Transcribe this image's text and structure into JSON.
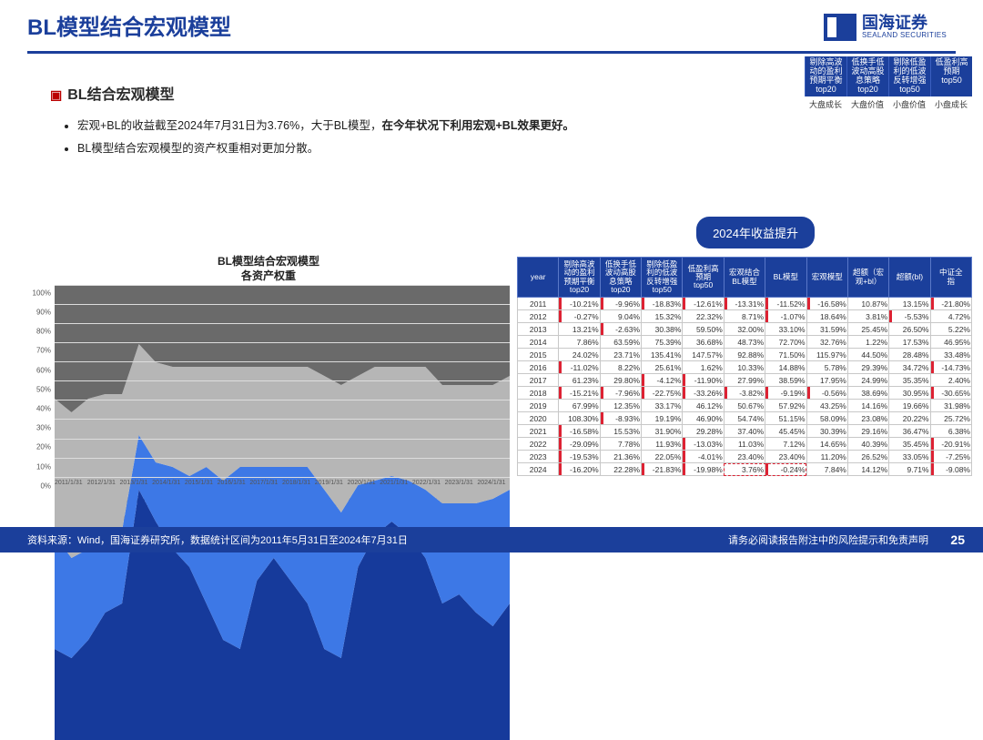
{
  "title": "BL模型结合宏观模型",
  "logo": {
    "cn": "国海证券",
    "en": "SEALAND SECURITIES"
  },
  "corner_legend": {
    "headers": [
      "剔除高波\n动的盈利\n预期平衡\ntop20",
      "低换手低\n波动高股\n息策略\ntop20",
      "剔除低盈\n利的低波\n反转增强\ntop50",
      "低盈利高\n预期\ntop50"
    ],
    "sub": [
      "大盘成长",
      "大盘价值",
      "小盘价值",
      "小盘成长"
    ]
  },
  "subtitle": "BL结合宏观模型",
  "bullets": [
    {
      "t1": "宏观+BL的收益截至2024年7月31日为3.76%，大于BL模型，",
      "bold": "在今年状况下利用宏观+BL效果更好。"
    },
    {
      "t1": "BL模型结合宏观模型的资产权重相对更加分散。",
      "bold": ""
    }
  ],
  "badge": "2024年收益提升",
  "chart": {
    "title1": "BL模型结合宏观模型",
    "title2": "各资产权重",
    "ylim": [
      0,
      100
    ],
    "ytick_step": 10,
    "x_labels": [
      "2011/1/31",
      "2012/1/31",
      "2013/1/31",
      "2014/1/31",
      "2015/1/31",
      "2016/1/31",
      "2017/1/31",
      "2018/1/31",
      "2019/1/31",
      "2020/1/31",
      "2021/1/31",
      "2022/1/31",
      "2023/1/31",
      "2024/1/31"
    ],
    "series": [
      {
        "name": "剔除高波动的盈利预期平衡top20",
        "color": "#163a9b",
        "values": [
          20,
          18,
          22,
          28,
          30,
          55,
          48,
          42,
          38,
          30,
          22,
          20,
          35,
          40,
          35,
          30,
          20,
          18,
          38,
          45,
          48,
          45,
          40,
          30,
          32,
          28,
          25,
          30
        ]
      },
      {
        "name": "低换手低波动高股息策略top20",
        "color": "#3d78e6",
        "values": [
          25,
          22,
          20,
          18,
          16,
          12,
          13,
          18,
          20,
          30,
          35,
          40,
          25,
          20,
          25,
          30,
          35,
          32,
          18,
          12,
          10,
          12,
          15,
          22,
          20,
          24,
          28,
          25
        ]
      },
      {
        "name": "剔除低盈利的低波反转增强top50",
        "color": "#b6b6b6",
        "values": [
          30,
          32,
          33,
          30,
          30,
          20,
          22,
          22,
          24,
          22,
          25,
          22,
          22,
          22,
          22,
          22,
          25,
          28,
          24,
          25,
          24,
          25,
          27,
          26,
          26,
          26,
          25,
          25
        ]
      },
      {
        "name": "低盈利高预期top50",
        "color": "#6a6a6a",
        "values": [
          25,
          28,
          25,
          24,
          24,
          13,
          17,
          18,
          18,
          18,
          18,
          18,
          18,
          18,
          18,
          18,
          20,
          22,
          20,
          18,
          18,
          18,
          18,
          22,
          22,
          22,
          22,
          20
        ]
      }
    ],
    "grid_color": "#dddddd"
  },
  "table": {
    "columns": [
      "year",
      "剔除高波\n动的盈利\n预期平衡\ntop20",
      "低换手低\n波动高股\n息策略\ntop20",
      "剔除低盈\n利的低波\n反转增强\ntop50",
      "低盈利高\n预期\ntop50",
      "宏观结合\nBL模型",
      "BL模型",
      "宏观模型",
      "超额（宏\n观+bl）",
      "超额(bl)",
      "中证全\n指"
    ],
    "rows": [
      [
        "2011",
        "-10.21%",
        "-9.96%",
        "-18.83%",
        "-12.61%",
        "-13.31%",
        "-11.52%",
        "-16.58%",
        "10.87%",
        "13.15%",
        "-21.80%"
      ],
      [
        "2012",
        "-0.27%",
        "9.04%",
        "15.32%",
        "22.32%",
        "8.71%",
        "-1.07%",
        "18.64%",
        "3.81%",
        "-5.53%",
        "4.72%"
      ],
      [
        "2013",
        "13.21%",
        "-2.63%",
        "30.38%",
        "59.50%",
        "32.00%",
        "33.10%",
        "31.59%",
        "25.45%",
        "26.50%",
        "5.22%"
      ],
      [
        "2014",
        "7.86%",
        "63.59%",
        "75.39%",
        "36.68%",
        "48.73%",
        "72.70%",
        "32.76%",
        "1.22%",
        "17.53%",
        "46.95%"
      ],
      [
        "2015",
        "24.02%",
        "23.71%",
        "135.41%",
        "147.57%",
        "92.88%",
        "71.50%",
        "115.97%",
        "44.50%",
        "28.48%",
        "33.48%"
      ],
      [
        "2016",
        "-11.02%",
        "8.22%",
        "25.61%",
        "1.62%",
        "10.33%",
        "14.88%",
        "5.78%",
        "29.39%",
        "34.72%",
        "-14.73%"
      ],
      [
        "2017",
        "61.23%",
        "29.80%",
        "-4.12%",
        "-11.90%",
        "27.99%",
        "38.59%",
        "17.95%",
        "24.99%",
        "35.35%",
        "2.40%"
      ],
      [
        "2018",
        "-15.21%",
        "-7.96%",
        "-22.75%",
        "-33.26%",
        "-3.82%",
        "-9.19%",
        "-0.56%",
        "38.69%",
        "30.95%",
        "-30.65%"
      ],
      [
        "2019",
        "67.99%",
        "12.35%",
        "33.17%",
        "46.12%",
        "50.67%",
        "57.92%",
        "43.25%",
        "14.16%",
        "19.66%",
        "31.98%"
      ],
      [
        "2020",
        "108.30%",
        "-8.93%",
        "19.19%",
        "46.90%",
        "54.74%",
        "51.15%",
        "58.09%",
        "23.08%",
        "20.22%",
        "25.72%"
      ],
      [
        "2021",
        "-16.58%",
        "15.53%",
        "31.90%",
        "29.28%",
        "37.40%",
        "45.45%",
        "30.39%",
        "29.16%",
        "36.47%",
        "6.38%"
      ],
      [
        "2022",
        "-29.09%",
        "7.78%",
        "11.93%",
        "-13.03%",
        "11.03%",
        "7.12%",
        "14.65%",
        "40.39%",
        "35.45%",
        "-20.91%"
      ],
      [
        "2023",
        "-19.53%",
        "21.36%",
        "22.05%",
        "-4.01%",
        "23.40%",
        "23.40%",
        "11.20%",
        "26.52%",
        "33.05%",
        "-7.25%"
      ],
      [
        "2024",
        "-16.20%",
        "22.28%",
        "-21.83%",
        "-19.98%",
        "3.76%",
        "-0.24%",
        "7.84%",
        "14.12%",
        "9.71%",
        "-9.08%"
      ]
    ],
    "neg_redbar_threshold": 0,
    "diverge_max": 150,
    "highlight": {
      "row": 13,
      "cols": [
        5,
        6
      ]
    }
  },
  "footer": {
    "src": "资料来源：Wind，国海证券研究所，数据统计区间为2011年5月31日至2024年7月31日",
    "disc": "请务必阅读报告附注中的风险提示和免责声明",
    "page": "25"
  }
}
